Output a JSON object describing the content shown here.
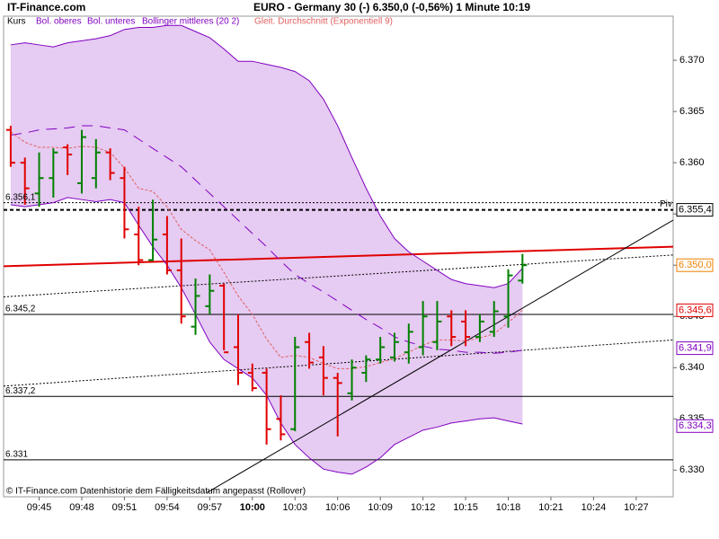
{
  "site": "IT-Finance.com",
  "chart_data": {
    "type": "ohlc",
    "title": "EURO - Germany 30 (-)   6.350,0 (-0,56%)   1 Minute  10:19",
    "footer": "© IT-Finance.com  Datenhistorie dem Fälligkeitsdatum angepasst (Rollover)",
    "ohlc": {
      "name": "Kurs",
      "up_color": "#008000",
      "down_color": "#e00000",
      "open": [
        6363.2,
        6360,
        6357,
        6358.5,
        6361.5,
        6358,
        6358.5,
        6361,
        6358.5,
        6353,
        6350.5,
        6353,
        6349.5,
        6344,
        6346,
        6348,
        6342,
        6339.5,
        6339.5,
        6335,
        6334,
        6342.5,
        6341,
        6339,
        6337.5,
        6339.5,
        6340.8,
        6341,
        6341.5,
        6342,
        6342.5,
        6345,
        6344.5,
        6343,
        6343.5,
        6345,
        6348.5
      ],
      "high": [
        6363.6,
        6360.5,
        6361,
        6361.4,
        6361.8,
        6363.2,
        6362.3,
        6361.4,
        6359.6,
        6355.7,
        6356.4,
        6354.8,
        6352.6,
        6348.7,
        6349.1,
        6348.2,
        6345.2,
        6340.4,
        6339.9,
        6337.3,
        6343,
        6343.4,
        6342.1,
        6339.5,
        6340.8,
        6341.2,
        6343,
        6343.4,
        6344.3,
        6346.5,
        6346.5,
        6345.6,
        6345.6,
        6345.2,
        6346.5,
        6349.6,
        6351.1
      ],
      "low": [
        6359.6,
        6355.9,
        6355.7,
        6356.6,
        6358.8,
        6357,
        6357.5,
        6358.3,
        6352.6,
        6350,
        6350.4,
        6349.1,
        6344.3,
        6343.2,
        6345.2,
        6341.7,
        6338.3,
        6337.7,
        6332.5,
        6332.9,
        6333.8,
        6339.9,
        6337.3,
        6333.3,
        6336.8,
        6338.6,
        6340.4,
        6340.6,
        6340.4,
        6341.2,
        6341.7,
        6342.1,
        6342.1,
        6342.5,
        6343,
        6343.9,
        6348.2
      ],
      "close": [
        6360,
        6357.5,
        6358.5,
        6361,
        6360.8,
        6362.5,
        6361,
        6359,
        6353.5,
        6350.5,
        6352.5,
        6349.5,
        6345,
        6347,
        6347.5,
        6341.5,
        6339.5,
        6338,
        6334,
        6333.5,
        6342,
        6340.5,
        6339,
        6338.5,
        6340,
        6340.8,
        6342,
        6342.5,
        6343.5,
        6345,
        6344.5,
        6343,
        6343,
        6344.5,
        6345.5,
        6349,
        6350
      ]
    },
    "x": [
      583,
      584,
      585,
      586,
      587,
      588,
      589,
      590,
      591,
      592,
      593,
      594,
      595,
      596,
      597,
      598,
      599,
      600,
      601,
      602,
      603,
      604,
      605,
      606,
      607,
      608,
      609,
      610,
      611,
      612,
      613,
      614,
      615,
      616,
      617,
      618,
      619
    ],
    "band_fill": "#e6cbf2",
    "series": [
      {
        "name": "Bol. oberes",
        "color": "#8000c0",
        "style": "solid",
        "values": [
          6371.5,
          6371.7,
          6371.5,
          6371.3,
          6371.7,
          6371.9,
          6372.1,
          6372.4,
          6373,
          6373.2,
          6373.2,
          6373.4,
          6373.4,
          6372.8,
          6372.2,
          6371.1,
          6369.9,
          6369.9,
          6369.6,
          6369.3,
          6368.9,
          6368,
          6366.2,
          6363.6,
          6360.5,
          6357.5,
          6354.8,
          6352.6,
          6351.3,
          6350.4,
          6349.5,
          6348.6,
          6348.2,
          6348,
          6347.8,
          6348.2,
          6349.7
        ]
      },
      {
        "name": "Bol. unteres",
        "color": "#8000c0",
        "style": "solid",
        "values": [
          6355.9,
          6355.7,
          6355.9,
          6356.1,
          6356.6,
          6356.4,
          6356.2,
          6356.4,
          6356.1,
          6353.9,
          6351.8,
          6350,
          6347.8,
          6345.2,
          6342.5,
          6340.8,
          6339.9,
          6339,
          6337.3,
          6334.6,
          6332.5,
          6331.2,
          6330.1,
          6329.8,
          6329.6,
          6330.3,
          6331.2,
          6332.5,
          6333.2,
          6333.9,
          6334.2,
          6334.6,
          6334.8,
          6335,
          6335.1,
          6334.8,
          6334.5
        ]
      },
      {
        "name": "Bollinger mittleres (20 2)",
        "color": "#8000c0",
        "style": "dashed",
        "values": [
          6362.7,
          6362.9,
          6363.2,
          6363.3,
          6363.4,
          6363.6,
          6363.6,
          6363.4,
          6363.2,
          6362.3,
          6361.4,
          6360.5,
          6359.6,
          6358.3,
          6357,
          6355.7,
          6354.4,
          6353.1,
          6351.8,
          6350.4,
          6349.1,
          6348.2,
          6347.4,
          6346.5,
          6345.6,
          6344.7,
          6343.9,
          6343,
          6342.5,
          6342.1,
          6341.8,
          6341.7,
          6341.5,
          6341.5,
          6341.4,
          6341.5,
          6341.7
        ]
      },
      {
        "name": "Gleit. Durchschnitt (Exponentiell 9)",
        "color": "#e06060",
        "style": "dotted",
        "values": [
          6363,
          6362,
          6361.5,
          6361.5,
          6361.4,
          6361.6,
          6361.5,
          6361,
          6359.5,
          6357.5,
          6357.2,
          6355.7,
          6353.5,
          6352.4,
          6351.5,
          6349.3,
          6347,
          6345.2,
          6342.8,
          6341,
          6341.2,
          6341,
          6340.4,
          6339.9,
          6339.9,
          6340.1,
          6340.5,
          6340.9,
          6341.5,
          6342.2,
          6342.7,
          6342.7,
          6342.6,
          6342.9,
          6343.3,
          6344.4,
          6345.6
        ]
      }
    ],
    "xlim": [
      582.5,
      629.6
    ],
    "xticks": [
      {
        "value": 585,
        "label": "09:45"
      },
      {
        "value": 588,
        "label": "09:48"
      },
      {
        "value": 591,
        "label": "09:51"
      },
      {
        "value": 594,
        "label": "09:54"
      },
      {
        "value": 597,
        "label": "09:57"
      },
      {
        "value": 600,
        "label": "10:00",
        "bold": true
      },
      {
        "value": 603,
        "label": "10:03"
      },
      {
        "value": 606,
        "label": "10:06"
      },
      {
        "value": 609,
        "label": "10:09"
      },
      {
        "value": 612,
        "label": "10:12"
      },
      {
        "value": 615,
        "label": "10:15"
      },
      {
        "value": 618,
        "label": "10:18"
      },
      {
        "value": 621,
        "label": "10:21"
      },
      {
        "value": 624,
        "label": "10:24"
      },
      {
        "value": 627,
        "label": "10:27"
      }
    ],
    "ylim": [
      6327.4,
      6374.3
    ],
    "yticks": [
      {
        "value": 6330,
        "label": "6.330"
      },
      {
        "value": 6335,
        "label": "6.335"
      },
      {
        "value": 6340,
        "label": "6.340"
      },
      {
        "value": 6345,
        "label": "6.345"
      },
      {
        "value": 6350,
        "label": "6.350"
      },
      {
        "value": 6355,
        "label": "6.355"
      },
      {
        "value": 6360,
        "label": "6.360"
      },
      {
        "value": 6365,
        "label": "6.365"
      },
      {
        "value": 6370,
        "label": "6.370"
      }
    ],
    "levels": [
      {
        "value": 6356.1,
        "label": "6.356,1",
        "style": "dotted"
      },
      {
        "value": 6355.4,
        "style": "dashed"
      },
      {
        "value": 6345.2,
        "label": "6.345,2",
        "style": "solid"
      },
      {
        "value": 6337.2,
        "label": "6.337,2",
        "style": "solid"
      },
      {
        "value": 6331,
        "label": "6.331",
        "style": "solid"
      }
    ],
    "pivot_label": "Piv",
    "trendlines": [
      {
        "color": "#e00000",
        "style": "thick",
        "x": [
          582.5,
          629.6
        ],
        "y": [
          6349.9,
          6351.8
        ]
      },
      {
        "color": "#000000",
        "style": "dotted",
        "x": [
          582.5,
          629.6
        ],
        "y": [
          6346.9,
          6351
        ]
      },
      {
        "color": "#000000",
        "style": "dotted",
        "x": [
          582.5,
          629.6
        ],
        "y": [
          6338.2,
          6342.7
        ]
      },
      {
        "color": "#000000",
        "style": "solid",
        "x": [
          596.8,
          629.6
        ],
        "y": [
          6327.8,
          6354.4
        ]
      }
    ],
    "price_labels": [
      {
        "value": 6355.4,
        "label": "6.355,4",
        "color": "#000000"
      },
      {
        "value": 6350,
        "label": "6.350,0",
        "color": "#f08000"
      },
      {
        "value": 6345.6,
        "label": "6.345,6",
        "color": "#e00000"
      },
      {
        "value": 6341.9,
        "label": "6.341,9",
        "color": "#8000c0"
      },
      {
        "value": 6334.3,
        "label": "6.334,3",
        "color": "#8000c0"
      }
    ]
  }
}
